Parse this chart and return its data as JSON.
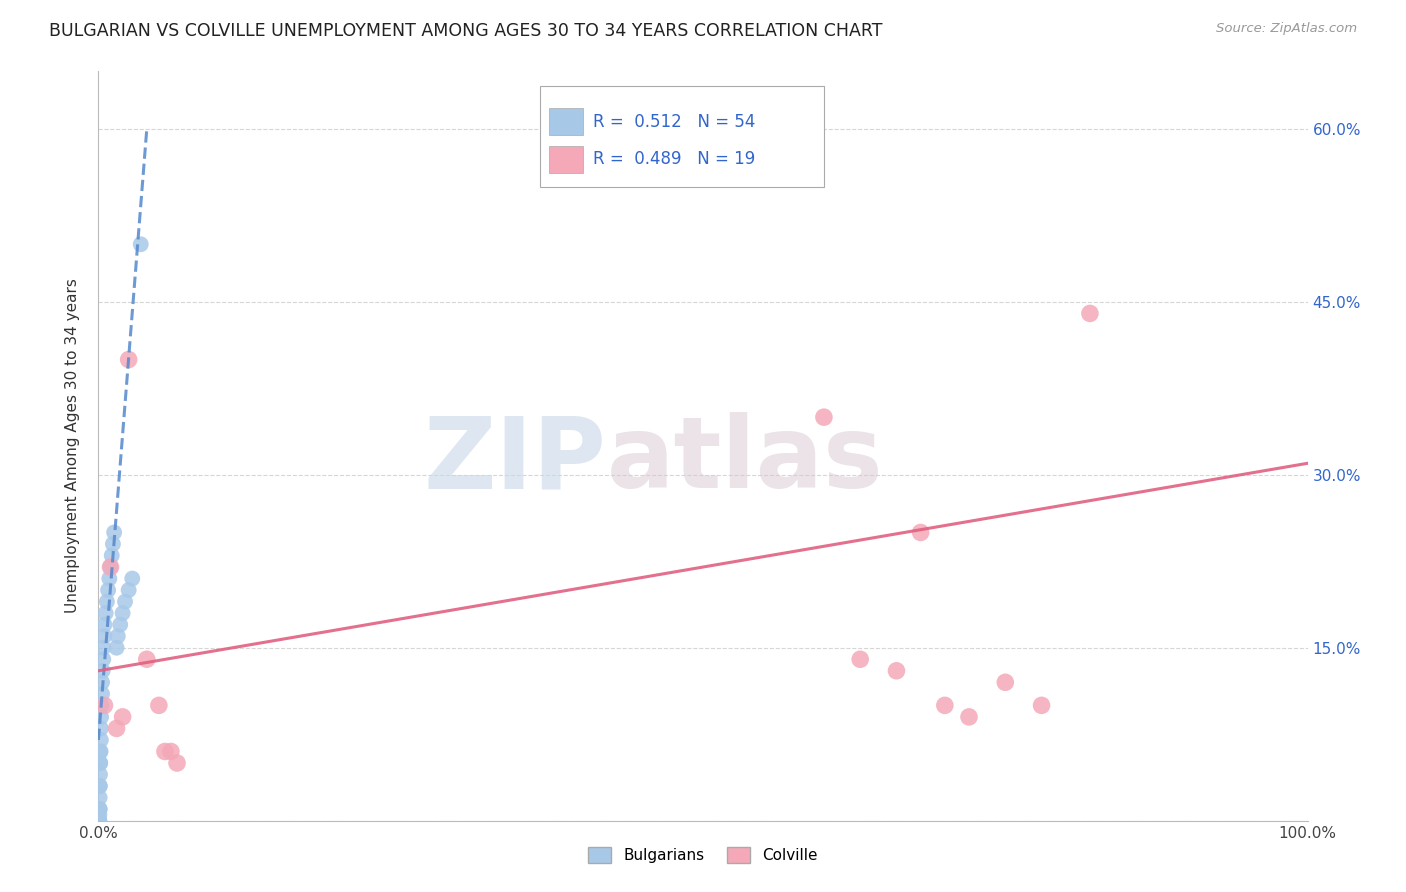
{
  "title": "BULGARIAN VS COLVILLE UNEMPLOYMENT AMONG AGES 30 TO 34 YEARS CORRELATION CHART",
  "source": "Source: ZipAtlas.com",
  "ylabel": "Unemployment Among Ages 30 to 34 years",
  "xlim": [
    0.0,
    1.0
  ],
  "ylim": [
    0.0,
    0.65
  ],
  "xticks": [
    0.0,
    0.25,
    0.5,
    0.75,
    1.0
  ],
  "xticklabels": [
    "0.0%",
    "",
    "",
    "",
    "100.0%"
  ],
  "yticks": [
    0.0,
    0.15,
    0.3,
    0.45,
    0.6
  ],
  "yticklabels": [
    "",
    "15.0%",
    "30.0%",
    "45.0%",
    "60.0%"
  ],
  "bulgarian_R": 0.512,
  "bulgarian_N": 54,
  "colville_R": 0.489,
  "colville_N": 19,
  "bulgarian_color": "#a8c8e8",
  "colville_color": "#f4a8b8",
  "bulgarian_line_color": "#5588cc",
  "colville_line_color": "#e06080",
  "background_color": "#ffffff",
  "grid_color": "#cccccc",
  "bulgarian_x": [
    0.0003,
    0.0003,
    0.0003,
    0.0003,
    0.0003,
    0.0004,
    0.0004,
    0.0004,
    0.0005,
    0.0005,
    0.0005,
    0.0006,
    0.0006,
    0.0007,
    0.0007,
    0.0008,
    0.0008,
    0.0009,
    0.001,
    0.001,
    0.001,
    0.0012,
    0.0013,
    0.0014,
    0.0015,
    0.0016,
    0.0017,
    0.002,
    0.002,
    0.0022,
    0.0025,
    0.003,
    0.003,
    0.0035,
    0.004,
    0.004,
    0.005,
    0.005,
    0.006,
    0.007,
    0.008,
    0.009,
    0.01,
    0.011,
    0.012,
    0.013,
    0.015,
    0.016,
    0.018,
    0.02,
    0.022,
    0.025,
    0.028,
    0.035
  ],
  "bulgarian_y": [
    0.0,
    0.0,
    0.0,
    0.0,
    0.0,
    0.0,
    0.0,
    0.0,
    0.0,
    0.0,
    0.0,
    0.0,
    0.0,
    0.0,
    0.0,
    0.005,
    0.01,
    0.01,
    0.01,
    0.02,
    0.03,
    0.03,
    0.04,
    0.05,
    0.05,
    0.06,
    0.06,
    0.07,
    0.08,
    0.09,
    0.1,
    0.11,
    0.12,
    0.13,
    0.14,
    0.15,
    0.16,
    0.17,
    0.18,
    0.19,
    0.2,
    0.21,
    0.22,
    0.23,
    0.24,
    0.25,
    0.15,
    0.16,
    0.17,
    0.18,
    0.19,
    0.2,
    0.21,
    0.5
  ],
  "colville_x": [
    0.005,
    0.01,
    0.015,
    0.02,
    0.025,
    0.04,
    0.05,
    0.055,
    0.06,
    0.065,
    0.6,
    0.63,
    0.66,
    0.68,
    0.7,
    0.72,
    0.75,
    0.78,
    0.82
  ],
  "colville_y": [
    0.1,
    0.22,
    0.08,
    0.09,
    0.4,
    0.14,
    0.1,
    0.06,
    0.06,
    0.05,
    0.35,
    0.14,
    0.13,
    0.25,
    0.1,
    0.09,
    0.12,
    0.1,
    0.44
  ],
  "bulgarian_trendline_x": [
    0.0,
    0.04
  ],
  "bulgarian_trendline_y": [
    0.07,
    0.6
  ],
  "colville_trendline_x": [
    0.0,
    1.0
  ],
  "colville_trendline_y": [
    0.13,
    0.31
  ],
  "watermark_top": "ZIP",
  "watermark_bottom": "atlas",
  "watermark_color_top": "#d0dce8",
  "watermark_color_bottom": "#d0dce8"
}
